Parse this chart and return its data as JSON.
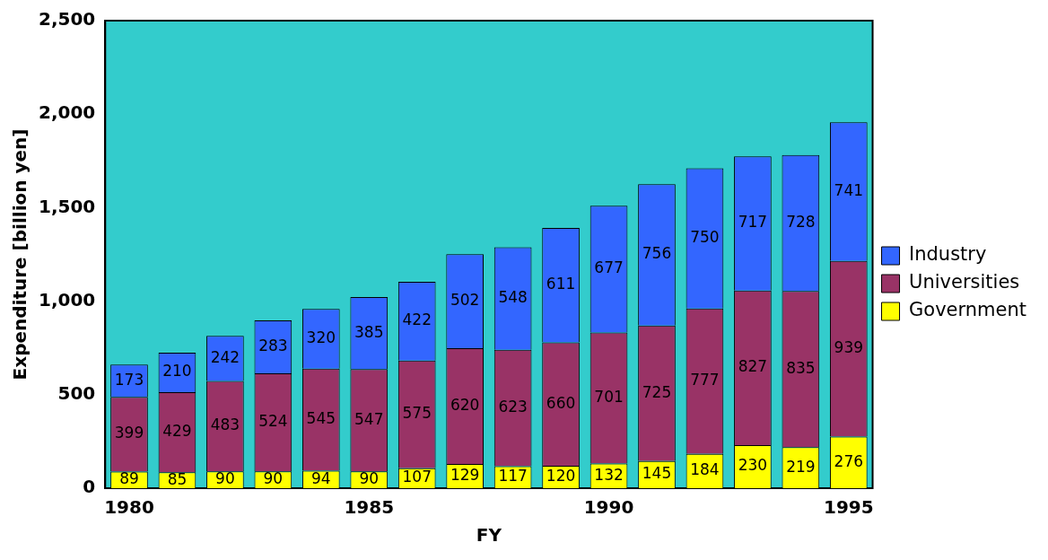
{
  "chart_data": {
    "type": "bar",
    "stacked": true,
    "xlabel": "FY",
    "ylabel": "Expenditure [billion yen]",
    "categories": [
      "1980",
      null,
      null,
      null,
      null,
      "1985",
      null,
      null,
      null,
      null,
      "1990",
      null,
      null,
      null,
      null,
      "1995"
    ],
    "series": [
      {
        "name": "Government",
        "color": "#ffff00",
        "values": [
          89,
          85,
          90,
          90,
          94,
          90,
          107,
          129,
          117,
          120,
          132,
          145,
          184,
          230,
          219,
          276
        ]
      },
      {
        "name": "Universities",
        "color": "#993366",
        "values": [
          399,
          429,
          483,
          524,
          545,
          547,
          575,
          620,
          623,
          660,
          701,
          725,
          777,
          827,
          835,
          939
        ]
      },
      {
        "name": "Industry",
        "color": "#3366ff",
        "values": [
          173,
          210,
          242,
          283,
          320,
          385,
          422,
          502,
          548,
          611,
          677,
          756,
          750,
          717,
          728,
          741
        ]
      }
    ],
    "ylim": [
      0,
      2500
    ],
    "yticks": [
      0,
      500,
      {
        "value": 1000,
        "label": "1,000"
      },
      {
        "value": 1500,
        "label": "1,500"
      },
      {
        "value": 2000,
        "label": "2,000"
      },
      {
        "value": 2500,
        "label": "2,500"
      }
    ],
    "grid": false,
    "legend": "right",
    "data_labels": true
  }
}
